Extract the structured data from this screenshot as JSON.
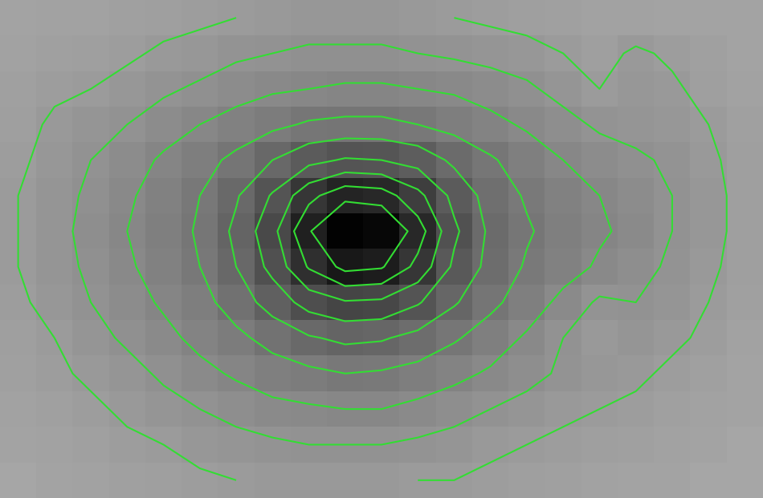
{
  "chart_data": {
    "type": "contour",
    "cells": [
      [
        1.0,
        1.1,
        1.1,
        1.2,
        1.3,
        1.4,
        1.5,
        1.6,
        1.7,
        1.7,
        1.7,
        1.6,
        1.5,
        1.4,
        1.3,
        1.2,
        1.1,
        1.1,
        1.0,
        1.0,
        1.0
      ],
      [
        1.1,
        1.2,
        1.3,
        1.4,
        1.6,
        1.7,
        1.9,
        2.0,
        2.1,
        2.1,
        2.1,
        2.0,
        1.9,
        1.8,
        1.7,
        1.5,
        1.3,
        1.6,
        1.4,
        1.2,
        1.0
      ],
      [
        1.2,
        1.4,
        1.5,
        1.7,
        1.9,
        2.1,
        2.3,
        2.5,
        2.6,
        2.7,
        2.7,
        2.6,
        2.5,
        2.3,
        2.1,
        1.8,
        1.5,
        1.7,
        1.6,
        1.3,
        1.1
      ],
      [
        1.3,
        1.6,
        1.8,
        2.0,
        2.3,
        2.6,
        2.9,
        3.2,
        3.5,
        3.6,
        3.6,
        3.4,
        3.1,
        2.8,
        2.5,
        2.2,
        1.9,
        1.8,
        1.7,
        1.5,
        1.2
      ],
      [
        1.4,
        1.7,
        2.0,
        2.3,
        2.7,
        3.1,
        3.6,
        4.3,
        5.0,
        5.4,
        5.3,
        4.9,
        4.1,
        3.5,
        3.0,
        2.6,
        2.3,
        2.1,
        1.9,
        1.6,
        1.3
      ],
      [
        1.5,
        1.8,
        2.1,
        2.5,
        2.9,
        3.4,
        4.2,
        5.4,
        7.0,
        8.0,
        7.8,
        6.6,
        5.0,
        3.9,
        3.3,
        2.9,
        2.6,
        2.3,
        2.0,
        1.7,
        1.3
      ],
      [
        1.5,
        1.8,
        2.2,
        2.6,
        3.0,
        3.5,
        4.5,
        6.0,
        8.2,
        9.8,
        9.6,
        7.8,
        5.5,
        4.1,
        3.5,
        3.0,
        2.7,
        2.4,
        2.0,
        1.7,
        1.3
      ],
      [
        1.5,
        1.8,
        2.1,
        2.5,
        2.9,
        3.4,
        4.3,
        5.6,
        7.4,
        8.6,
        8.4,
        7.0,
        5.1,
        4.0,
        3.3,
        2.9,
        2.5,
        2.2,
        1.9,
        1.6,
        1.3
      ],
      [
        1.4,
        1.7,
        2.0,
        2.3,
        2.7,
        3.1,
        3.8,
        4.7,
        5.7,
        6.2,
        6.1,
        5.4,
        4.4,
        3.6,
        3.0,
        2.4,
        1.9,
        2.0,
        1.8,
        1.5,
        1.2
      ],
      [
        1.3,
        1.5,
        1.8,
        2.1,
        2.4,
        2.8,
        3.2,
        3.7,
        4.2,
        4.5,
        4.4,
        4.0,
        3.5,
        3.0,
        2.5,
        2.0,
        1.6,
        1.8,
        1.6,
        1.4,
        1.1
      ],
      [
        1.2,
        1.4,
        1.6,
        1.8,
        2.1,
        2.4,
        2.7,
        3.0,
        3.2,
        3.4,
        3.3,
        3.1,
        2.8,
        2.5,
        2.2,
        1.9,
        1.7,
        1.6,
        1.4,
        1.2,
        1.0
      ],
      [
        1.1,
        1.2,
        1.4,
        1.6,
        1.8,
        2.0,
        2.2,
        2.4,
        2.5,
        2.6,
        2.6,
        2.4,
        2.2,
        2.0,
        1.8,
        1.6,
        1.5,
        1.4,
        1.2,
        1.1,
        1.0
      ],
      [
        1.0,
        1.1,
        1.2,
        1.4,
        1.5,
        1.7,
        1.8,
        1.9,
        2.0,
        2.0,
        2.0,
        1.9,
        1.8,
        1.6,
        1.5,
        1.4,
        1.3,
        1.2,
        1.1,
        1.0,
        0.9
      ],
      [
        0.9,
        1.0,
        1.1,
        1.2,
        1.3,
        1.4,
        1.5,
        1.6,
        1.6,
        1.6,
        1.6,
        1.5,
        1.5,
        1.4,
        1.3,
        1.2,
        1.1,
        1.0,
        1.0,
        0.9,
        0.9
      ]
    ],
    "levels": [
      1.5,
      2.0,
      2.6,
      3.4,
      4.3,
      5.3,
      6.3,
      7.3,
      8.3
    ],
    "clim": [
      -4,
      10
    ],
    "color": "#33dd33",
    "tick_labels": false
  }
}
